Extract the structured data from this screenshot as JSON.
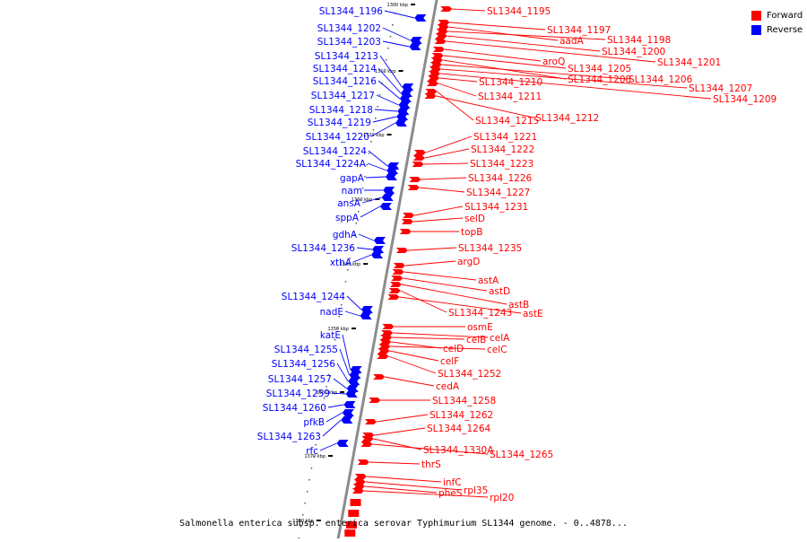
{
  "legend": {
    "forward_label": "Forward",
    "reverse_label": "Reverse",
    "forward_color": "#ff0000",
    "reverse_color": "#0000ff"
  },
  "caption": "Salmonella enterica subsp. enterica serovar Typhimurium SL1344 genome. - 0..4878...",
  "ruler_labels": [
    "1300 kbp",
    "1310 kbp",
    "1320 kbp",
    "1330 kbp",
    "1340 kbp",
    "1350 kbp",
    "1360 kbp",
    "1370 kbp",
    "1380 kbp"
  ],
  "forward_genes": [
    "SL1344_1195",
    "SL1344_1197",
    "aadA",
    "SL1344_1198",
    "SL1344_1200",
    "SL1344_1201",
    "aroQ",
    "SL1344_1205",
    "SL1344_1208",
    "SL1344_1206",
    "SL1344_1207",
    "SL1344_1209",
    "SL1344_1210",
    "SL1344_1211",
    "SL1344_1215",
    "SL1344_1212",
    "SL1344_1221",
    "SL1344_1222",
    "SL1344_1223",
    "SL1344_1226",
    "SL1344_1227",
    "SL1344_1231",
    "selD",
    "topB",
    "SL1344_1235",
    "argD",
    "astA",
    "astD",
    "astB",
    "SL1344_1243",
    "astE",
    "osmE",
    "celA",
    "celB",
    "celD",
    "celC",
    "celF",
    "SL1344_1252",
    "cedA",
    "SL1344_1258",
    "SL1344_1262",
    "SL1344_1264",
    "SL1344_1330A",
    "SL1344_1265",
    "thrS",
    "infC",
    "rpl35",
    "pheS",
    "rpl20"
  ],
  "reverse_genes": [
    "SL1344_1196",
    "SL1344_1202",
    "SL1344_1203",
    "SL1344_1213",
    "SL1344_1214",
    "SL1344_1216",
    "SL1344_1217",
    "SL1344_1218",
    "SL1344_1219",
    "SL1344_1220",
    "SL1344_1224",
    "SL1344_1224A",
    "gapA",
    "nam",
    "ansA",
    "sppA",
    "gdhA",
    "SL1344_1236",
    "xthA",
    "SL1344_1244",
    "nadE",
    "katE",
    "SL1344_1255",
    "SL1344_1256",
    "SL1344_1257",
    "SL1344_1259",
    "SL1344_1260",
    "pfkB",
    "SL1344_1263",
    "rfc"
  ]
}
